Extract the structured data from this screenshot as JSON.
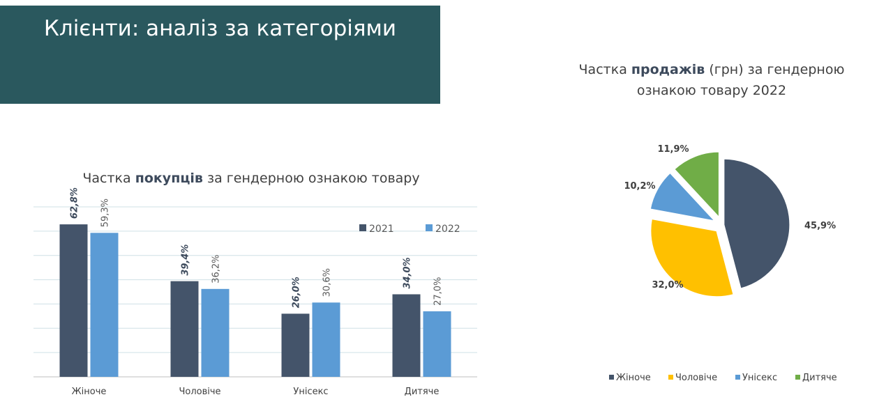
{
  "header": {
    "title": "Клієнти: аналіз за категоріями"
  },
  "chart_data": [
    {
      "type": "bar",
      "title": "Частка покупців за гендерною ознакою товару",
      "title_prefix": "Частка",
      "title_bold": "покупців",
      "title_suffix": "за гендерною ознакою товару",
      "categories": [
        "Жіноче",
        "Чоловіче",
        "Унісекс",
        "Дитяче"
      ],
      "series": [
        {
          "name": "2021",
          "values": [
            62.8,
            39.4,
            26.0,
            34.0
          ],
          "labels": [
            "62,8%",
            "39,4%",
            "26,0%",
            "34,0%"
          ],
          "color": "#44546a"
        },
        {
          "name": "2022",
          "values": [
            59.3,
            36.2,
            30.6,
            27.0
          ],
          "labels": [
            "59,3%",
            "36,2%",
            "30,6%",
            "27,0%"
          ],
          "color": "#5b9bd5"
        }
      ],
      "ylim": [
        0,
        70
      ],
      "grid": true,
      "legend": "top-right"
    },
    {
      "type": "pie",
      "title": "Частка продажів (грн) за гендерною ознакою товару 2022",
      "title_prefix": "Частка",
      "title_bold": "продажів",
      "title_suffix": "(грн) за гендерною ознакою товару 2022",
      "categories": [
        "Жіноче",
        "Чоловіче",
        "Унісекс",
        "Дитяче"
      ],
      "values": [
        45.9,
        32.0,
        10.2,
        11.9
      ],
      "labels": [
        "45,9%",
        "32,0%",
        "10,2%",
        "11,9%"
      ],
      "colors": [
        "#44546a",
        "#ffc000",
        "#5b9bd5",
        "#70ad47"
      ],
      "legend": "bottom"
    }
  ]
}
